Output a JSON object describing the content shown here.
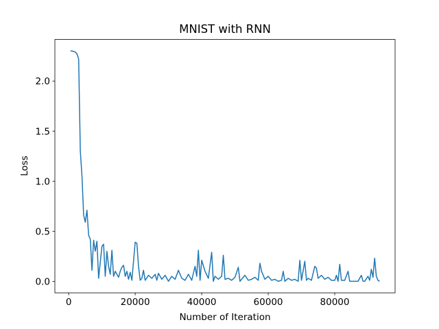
{
  "chart_data": {
    "type": "line",
    "title": "MNIST with RNN",
    "xlabel": "Number of Iteration",
    "ylabel": "Loss",
    "color": "#1f77b4",
    "x": [
      500,
      1000,
      2000,
      2500,
      3000,
      3500,
      4000,
      4500,
      5000,
      5500,
      6000,
      6500,
      7000,
      7500,
      8000,
      8500,
      9000,
      10000,
      10500,
      11000,
      11500,
      12000,
      12500,
      13000,
      13500,
      14000,
      15000,
      15500,
      16000,
      16500,
      17000,
      17500,
      18000,
      18500,
      19000,
      20000,
      20500,
      21000,
      21500,
      22000,
      22500,
      23000,
      24000,
      25000,
      26000,
      26500,
      27000,
      28000,
      29000,
      30000,
      31000,
      32000,
      33000,
      34000,
      35000,
      36000,
      37000,
      38000,
      38500,
      39000,
      39500,
      40000,
      41000,
      42000,
      43000,
      43500,
      44000,
      45000,
      46000,
      46500,
      47000,
      48000,
      49000,
      50000,
      51000,
      51500,
      52000,
      53000,
      54000,
      55000,
      56000,
      57000,
      57500,
      58000,
      59000,
      60000,
      61000,
      62000,
      63000,
      64000,
      64500,
      65000,
      66000,
      67000,
      68000,
      69000,
      69500,
      70000,
      71000,
      71500,
      72000,
      73000,
      74000,
      74500,
      75000,
      76000,
      77000,
      78000,
      79000,
      80000,
      80500,
      81000,
      81500,
      82000,
      83000,
      84000,
      84500,
      85000,
      86000,
      87000,
      88000,
      88500,
      89000,
      90000,
      90500,
      91000,
      91500,
      92000,
      92500,
      93000,
      93500
    ],
    "values": [
      2.3,
      2.3,
      2.29,
      2.27,
      2.22,
      1.3,
      1.05,
      0.66,
      0.59,
      0.71,
      0.46,
      0.42,
      0.11,
      0.41,
      0.3,
      0.4,
      0.03,
      0.35,
      0.37,
      0.05,
      0.3,
      0.15,
      0.07,
      0.31,
      0.05,
      0.1,
      0.04,
      0.1,
      0.14,
      0.16,
      0.05,
      0.1,
      0.02,
      0.09,
      0.01,
      0.39,
      0.38,
      0.15,
      0.01,
      0.03,
      0.11,
      0.01,
      0.06,
      0.03,
      0.07,
      0.01,
      0.08,
      0.02,
      0.06,
      0.0,
      0.05,
      0.02,
      0.11,
      0.03,
      0.01,
      0.07,
      0.01,
      0.15,
      0.05,
      0.31,
      0.01,
      0.21,
      0.1,
      0.03,
      0.29,
      0.0,
      0.05,
      0.02,
      0.05,
      0.26,
      0.02,
      0.03,
      0.01,
      0.04,
      0.14,
      0.0,
      0.02,
      0.06,
      0.01,
      0.02,
      0.04,
      0.01,
      0.18,
      0.1,
      0.02,
      0.05,
      0.01,
      0.02,
      0.0,
      0.01,
      0.1,
      0.0,
      0.03,
      0.01,
      0.02,
      0.0,
      0.21,
      0.01,
      0.2,
      0.01,
      0.03,
      0.01,
      0.15,
      0.13,
      0.03,
      0.06,
      0.02,
      0.04,
      0.01,
      0.01,
      0.06,
      0.0,
      0.17,
      0.01,
      0.01,
      0.1,
      0.0,
      0.0,
      0.0,
      0.0,
      0.06,
      0.0,
      0.0,
      0.05,
      0.01,
      0.12,
      0.04,
      0.23,
      0.05,
      0.01,
      0.0
    ],
    "xlim": [
      -4150,
      98150
    ],
    "ylim": [
      -0.115,
      2.415
    ],
    "xticks": [
      0,
      20000,
      40000,
      60000,
      80000
    ],
    "yticks": [
      {
        "value": 0,
        "label": "0.0"
      },
      0.5,
      {
        "value": 1,
        "label": "1.0"
      },
      1.5,
      {
        "value": 2,
        "label": "2.0"
      }
    ]
  }
}
